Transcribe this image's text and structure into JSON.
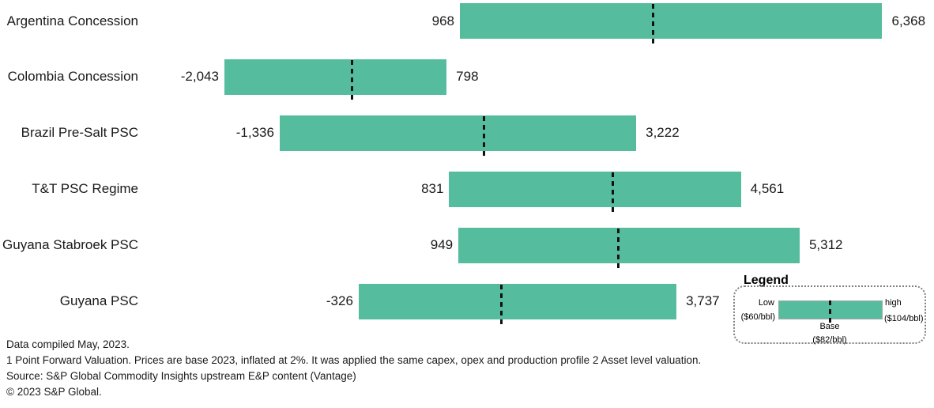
{
  "colors": {
    "bar_fill": "#55BD9D",
    "dash": "#111111",
    "legend_border": "#7f7f7f",
    "legend_bar_border": "#a6a6a6",
    "text": "#1a1a1a",
    "background": "#ffffff"
  },
  "chart_data": {
    "type": "bar",
    "orientation": "horizontal",
    "subtype": "floating-range-bars-with-base-marker",
    "grid": false,
    "axis_labels_visible": false,
    "value_range_shown": [
      -2043,
      6368
    ],
    "categories": [
      "Argentina Concession",
      "Colombia Concession",
      "Brazil Pre-Salt PSC",
      "T&T PSC Regime",
      "Guyana Stabroek PSC",
      "Guyana PSC"
    ],
    "series": [
      {
        "name": "Low ($60/bbl)",
        "values": [
          968,
          -2043,
          -1336,
          831,
          949,
          -326
        ]
      },
      {
        "name": "Base ($82/bbl)",
        "values": [
          3440,
          -410,
          1280,
          2920,
          2990,
          1500
        ],
        "estimated_from_marker_position": true
      },
      {
        "name": "high ($104/bbl)",
        "values": [
          6368,
          798,
          3222,
          4561,
          5312,
          3737
        ]
      }
    ],
    "rows": [
      {
        "category": "Argentina Concession",
        "low": 968,
        "high": 6368,
        "base_est": 3440,
        "low_label": "968",
        "high_label": "6,368"
      },
      {
        "category": "Colombia Concession",
        "low": -2043,
        "high": 798,
        "base_est": -410,
        "low_label": "-2,043",
        "high_label": "798"
      },
      {
        "category": "Brazil Pre-Salt PSC",
        "low": -1336,
        "high": 3222,
        "base_est": 1280,
        "low_label": "-1,336",
        "high_label": "3,222"
      },
      {
        "category": "T&T PSC Regime",
        "low": 831,
        "high": 4561,
        "base_est": 2920,
        "low_label": "831",
        "high_label": "4,561"
      },
      {
        "category": "Guyana Stabroek PSC",
        "low": 949,
        "high": 5312,
        "base_est": 2990,
        "low_label": "949",
        "high_label": "5,312"
      },
      {
        "category": "Guyana PSC",
        "low": -326,
        "high": 3737,
        "base_est": 1500,
        "low_label": "-326",
        "high_label": "3,737"
      }
    ]
  },
  "legend": {
    "title": "Legend",
    "low_label": "Low",
    "low_price": "($60/bbl)",
    "high_label": "high",
    "high_price": "($104/bbl)",
    "base_label": "Base",
    "base_price": "($82/bbl)"
  },
  "footer": {
    "lines": [
      "Data compiled May, 2023.",
      "1 Point Forward Valuation. Prices are base 2023, inflated at 2%. It was applied the same capex, opex and production profile 2 Asset level valuation.",
      "Source: S&P Global Commodity Insights upstream E&P content (Vantage)",
      "© 2023 S&P Global."
    ]
  }
}
